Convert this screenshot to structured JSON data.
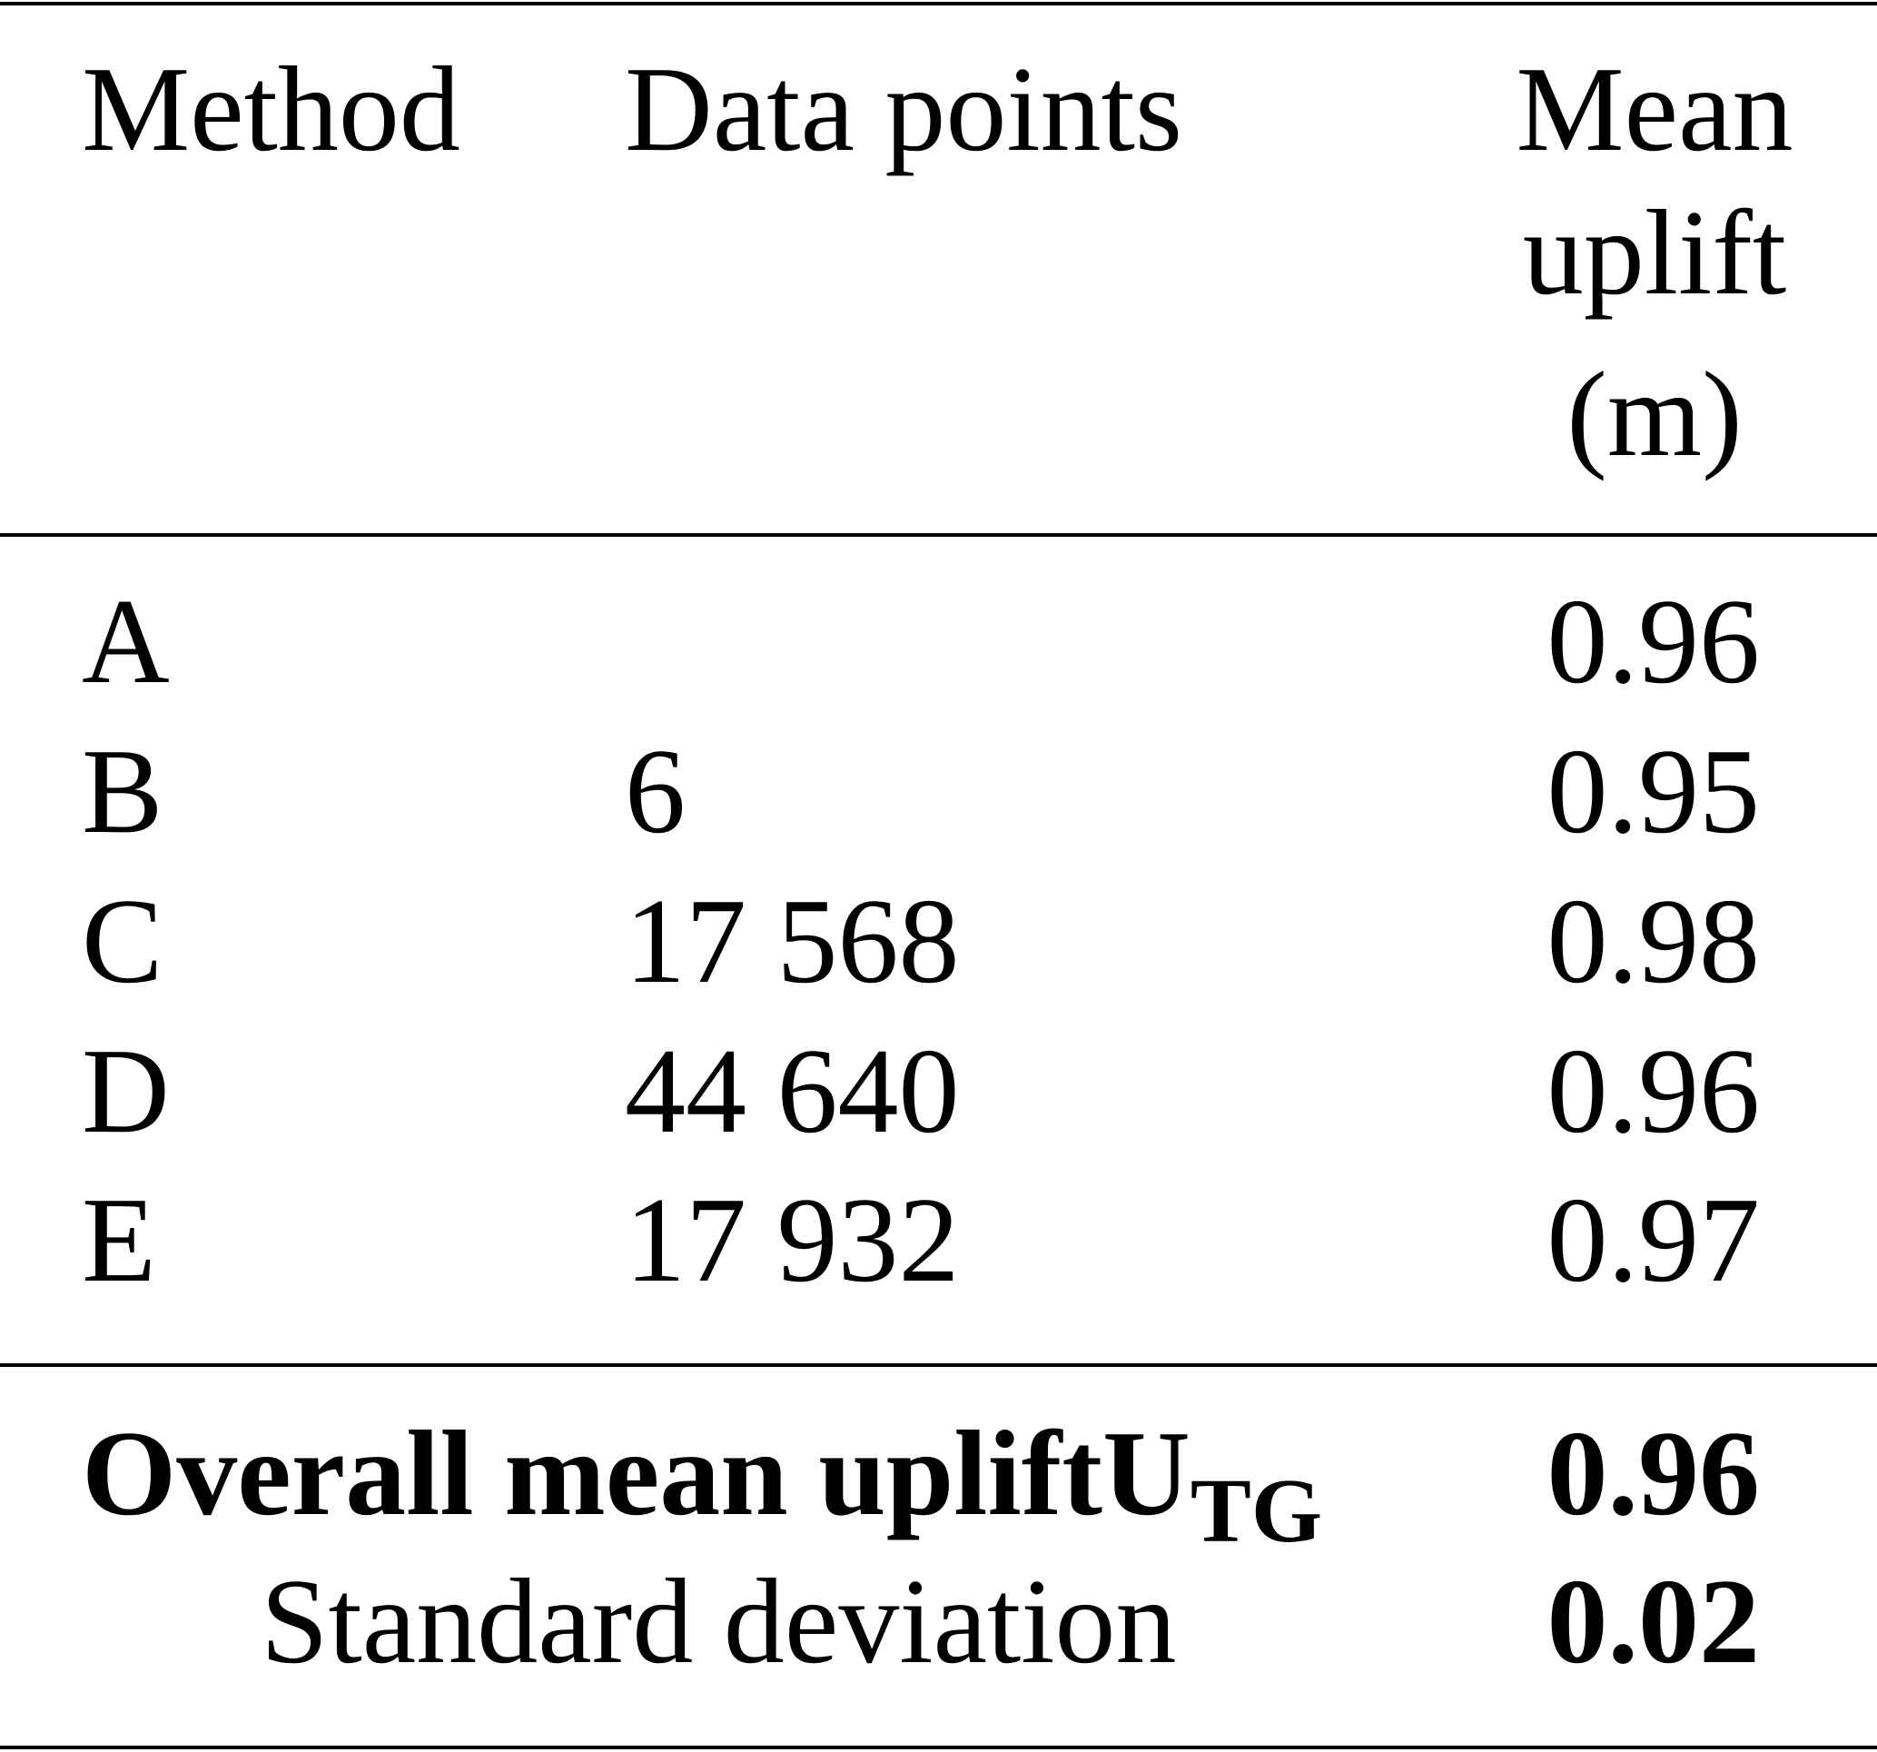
{
  "table": {
    "headers": {
      "method": "Method",
      "data_points": "Data points",
      "mean_uplift": [
        "Mean",
        "uplift",
        "(m)"
      ]
    },
    "rows": [
      {
        "method": "A",
        "data_points": "",
        "mean_uplift": "0.96"
      },
      {
        "method": "B",
        "data_points": "6",
        "mean_uplift": "0.95"
      },
      {
        "method": "C",
        "data_points": "17 568",
        "mean_uplift": "0.98"
      },
      {
        "method": "D",
        "data_points": "44 640",
        "mean_uplift": "0.96"
      },
      {
        "method": "E",
        "data_points": "17 932",
        "mean_uplift": "0.97"
      }
    ],
    "summary": {
      "overall_label": "Overall mean uplift",
      "overall_symbol": "U",
      "overall_subscript": "TG",
      "overall_value": "0.96",
      "std_label": "Standard deviation",
      "std_value": "0.02"
    }
  }
}
